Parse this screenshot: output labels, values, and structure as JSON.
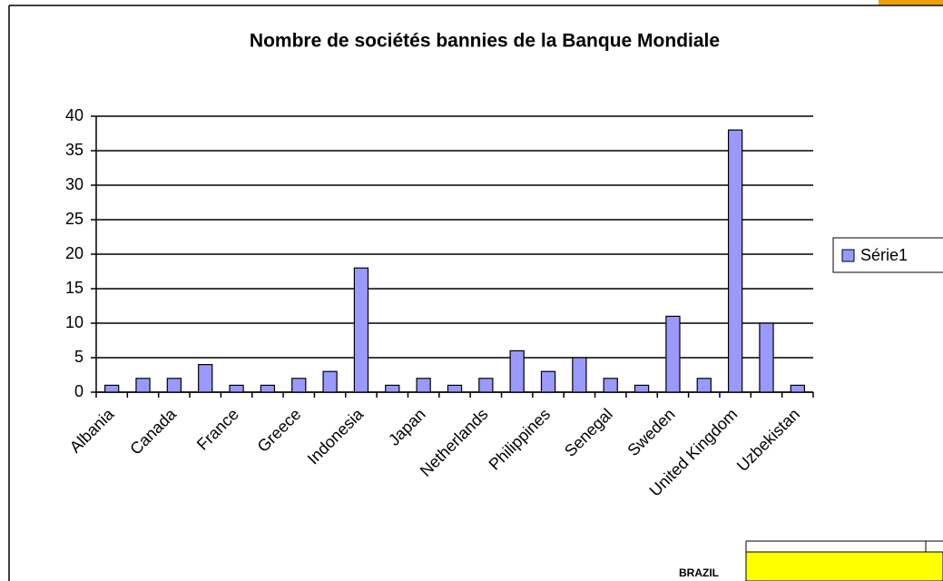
{
  "chart_data": {
    "type": "bar",
    "title": "Nombre de sociétés bannies de la Banque Mondiale",
    "categories": [
      "Albania",
      null,
      "Canada",
      null,
      "France",
      null,
      "Greece",
      null,
      "Indonesia",
      null,
      "Japan",
      null,
      "Netherlands",
      null,
      "Philippines",
      null,
      "Senegal",
      null,
      "Sweden",
      null,
      "United Kingdom",
      null,
      "Uzbekistan"
    ],
    "series": [
      {
        "name": "Série1",
        "color": "#9999ff",
        "values": [
          1,
          2,
          2,
          4,
          1,
          1,
          2,
          3,
          18,
          1,
          2,
          1,
          2,
          6,
          3,
          5,
          2,
          1,
          11,
          2,
          38,
          10,
          1
        ]
      }
    ],
    "ylim": [
      0,
      40
    ],
    "yticks": [
      0,
      5,
      10,
      15,
      20,
      25,
      30,
      35,
      40
    ],
    "grid": true,
    "legend": "right"
  },
  "overlay": {
    "label": "BRAZIL"
  }
}
